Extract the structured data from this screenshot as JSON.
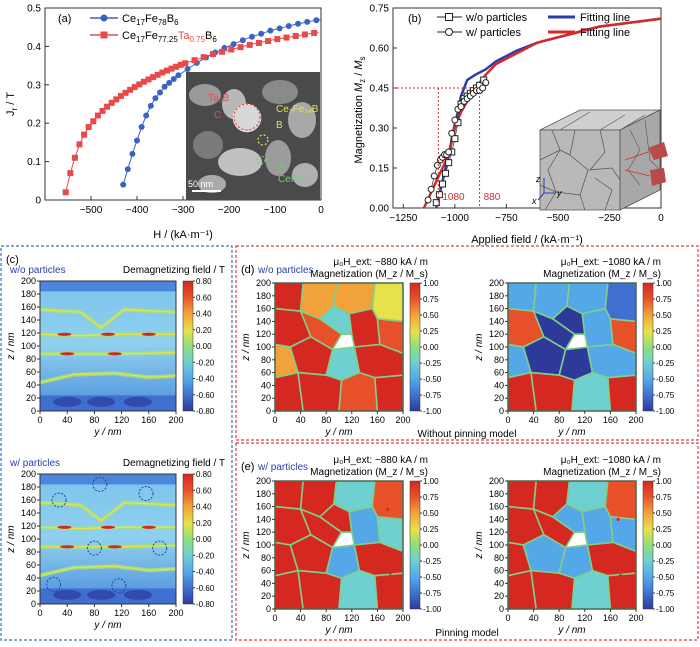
{
  "colors": {
    "blue_series": "#3b63c6",
    "red_series": "#e84a4a",
    "fit_blue": "#2a3ea8",
    "fit_red": "#d42a2a",
    "panel_c_border": "#3a6fc0",
    "panel_de_border": "#d94040",
    "cmap": [
      "#2e3a9a",
      "#3f6fd0",
      "#55a8e8",
      "#6fd0d0",
      "#8ee07a",
      "#e6e24a",
      "#f2a23a",
      "#e8502a",
      "#d42820"
    ]
  },
  "panel_a": {
    "label": "(a)",
    "xlabel": "H / (kA·m⁻¹)",
    "ylabel": "J_r / T",
    "legend": [
      {
        "pre": "Ce",
        "sub1": "17",
        "mid": "Fe",
        "sub2": "78",
        "mid2": "B",
        "sub3": "6"
      },
      {
        "pre": "Ce",
        "sub1": "17",
        "mid": "Fe",
        "sub2": "77.25",
        "ta": "Ta",
        "sub4": "0.75",
        "mid2": "B",
        "sub3": "6"
      }
    ],
    "inset": {
      "scale": "50 nm",
      "labels": {
        "ta2b": "Ta₂B",
        "c": "C",
        "b": "B",
        "a": "A",
        "ce2fe14b": "Ce₂Fe₁₄B",
        "cefe2": "CeFe₂"
      }
    }
  },
  "panel_b": {
    "label": "(b)",
    "xlabel": "Applied field / (kA·m⁻¹)",
    "ylabel": "Magnetization M_z / M_s",
    "legend": [
      "w/o particles",
      "w/ particles",
      "Fitting line",
      "Fitting line"
    ],
    "marker_1080": "1080",
    "marker_880": "880",
    "axis_labels": {
      "z": "z",
      "y": "y",
      "x": "x"
    }
  },
  "panel_c": {
    "label": "(c)",
    "top_title": "w/o particles",
    "bottom_title": "w/ particles",
    "cbar_title": "Demagnetizing field / T",
    "cbar_ticks": [
      "0.80",
      "0.60",
      "0.40",
      "0.20",
      "0.00",
      "-0.20",
      "-0.40",
      "-0.60",
      "-0.80"
    ],
    "xlabel": "y / nm",
    "ylabel": "z / nm",
    "xticks": [
      "0",
      "40",
      "80",
      "120",
      "160",
      "200"
    ],
    "yticks": [
      "200",
      "180",
      "160",
      "140",
      "120",
      "100",
      "80",
      "60",
      "40",
      "20",
      "0"
    ]
  },
  "panel_d": {
    "label": "(d)",
    "tag": "w/o particles",
    "field_left": "μ₀H_ext: −880 kA / m",
    "field_right": "μ₀H_ext: −1080 kA / m",
    "mag_title": "Magnetization (M_z / M_s)",
    "cbar_ticks": [
      "1.00",
      "0.75",
      "0.50",
      "0.25",
      "0.00",
      "-0.25",
      "-0.50",
      "-0.75",
      "-1.00"
    ],
    "xlabel": "y / nm",
    "ylabel": "z / nm",
    "caption": "Without pinning model",
    "xticks": [
      "0",
      "40",
      "80",
      "120",
      "160",
      "200"
    ],
    "yticks": [
      "200",
      "180",
      "160",
      "140",
      "120",
      "100",
      "80",
      "60",
      "40",
      "20",
      "0"
    ]
  },
  "panel_e": {
    "label": "(e)",
    "tag": "w/ particles",
    "field_left": "μ₀H_ext: −880 kA / m",
    "field_right": "μ₀H_ext: −1080 kA / m",
    "mag_title": "Magnetization (M_z / M_s)",
    "cbar_ticks": [
      "1.00",
      "0.75",
      "0.50",
      "0.25",
      "0.00",
      "-0.25",
      "-0.50",
      "-0.75",
      "-1.00"
    ],
    "xlabel": "y / nm",
    "ylabel": "z / nm",
    "caption": "Pinning model",
    "xticks": [
      "0",
      "40",
      "80",
      "120",
      "160",
      "200"
    ],
    "yticks": [
      "200",
      "180",
      "160",
      "140",
      "120",
      "100",
      "80",
      "60",
      "40",
      "20",
      "0"
    ]
  },
  "chart_data": [
    {
      "type": "line",
      "panel": "a",
      "xlabel": "H / (kA·m⁻¹)",
      "ylabel": "J_r / T",
      "xlim": [
        -600,
        0
      ],
      "ylim": [
        0,
        0.5
      ],
      "xticks": [
        -500,
        -400,
        -300,
        -200,
        -100,
        0
      ],
      "yticks": [
        0,
        0.1,
        0.2,
        0.3,
        0.4,
        0.5
      ],
      "series": [
        {
          "name": "Ce17Fe78B6",
          "color": "#3b63c6",
          "marker": "circle",
          "x": [
            -430,
            -420,
            -410,
            -400,
            -390,
            -380,
            -370,
            -360,
            -350,
            -340,
            -330,
            -320,
            -310,
            -300,
            -290,
            -280,
            -270,
            -260,
            -250,
            -240,
            -230,
            -220,
            -210,
            -200,
            -190,
            -180,
            -170,
            -160,
            -150,
            -140,
            -130,
            -120,
            -110,
            -100,
            -90,
            -80,
            -70,
            -60,
            -50,
            -40,
            -30,
            -20,
            -10,
            0
          ],
          "y": [
            0.04,
            0.08,
            0.12,
            0.155,
            0.19,
            0.22,
            0.245,
            0.265,
            0.28,
            0.295,
            0.305,
            0.315,
            0.325,
            0.333,
            0.341,
            0.349,
            0.357,
            0.364,
            0.371,
            0.378,
            0.384,
            0.39,
            0.396,
            0.401,
            0.406,
            0.411,
            0.416,
            0.421,
            0.425,
            0.429,
            0.433,
            0.437,
            0.441,
            0.444,
            0.447,
            0.45,
            0.453,
            0.456,
            0.459,
            0.461,
            0.464,
            0.466,
            0.468,
            0.47
          ]
        },
        {
          "name": "Ce17Fe77.25Ta0.75B6",
          "color": "#e84a4a",
          "marker": "square",
          "x": [
            -555,
            -545,
            -535,
            -525,
            -515,
            -505,
            -495,
            -485,
            -475,
            -465,
            -455,
            -445,
            -435,
            -425,
            -415,
            -405,
            -395,
            -385,
            -375,
            -365,
            -355,
            -345,
            -335,
            -325,
            -315,
            -305,
            -295,
            -285,
            -275,
            -265,
            -255,
            -245,
            -235,
            -225,
            -215,
            -205,
            -195,
            -185,
            -175,
            -165,
            -155,
            -145,
            -135,
            -125,
            -115,
            -105,
            -95,
            -85,
            -75,
            -65,
            -55,
            -45,
            -35,
            -25,
            -15,
            -5
          ],
          "y": [
            0.02,
            0.07,
            0.11,
            0.145,
            0.17,
            0.19,
            0.205,
            0.22,
            0.232,
            0.243,
            0.253,
            0.262,
            0.271,
            0.279,
            0.287,
            0.294,
            0.301,
            0.308,
            0.314,
            0.32,
            0.326,
            0.332,
            0.337,
            0.342,
            0.347,
            0.352,
            0.356,
            0.36,
            0.364,
            0.368,
            0.372,
            0.376,
            0.38,
            0.383,
            0.386,
            0.389,
            0.392,
            0.395,
            0.398,
            0.401,
            0.404,
            0.407,
            0.409,
            0.412,
            0.414,
            0.417,
            0.419,
            0.421,
            0.423,
            0.425,
            0.427,
            0.429,
            0.431,
            0.433,
            0.435,
            0.437
          ]
        }
      ]
    },
    {
      "type": "line",
      "panel": "b",
      "xlabel": "Applied field / (kA·m⁻¹)",
      "ylabel": "Magnetization M_z / M_s",
      "xlim": [
        -1200,
        0
      ],
      "ylim": [
        0,
        0.75
      ],
      "xticks": [
        -1250,
        -1000,
        -750,
        -500,
        -250,
        0
      ],
      "yticks": [
        0,
        0.15,
        0.3,
        0.45,
        0.6,
        0.75
      ],
      "annotations": [
        {
          "x": -1080,
          "text": "1080"
        },
        {
          "x": -880,
          "text": "880"
        }
      ],
      "series": [
        {
          "name": "w/o particles",
          "color": "#222222",
          "marker": "square",
          "x": [
            -1090,
            -1075,
            -1060,
            -1045,
            -1030,
            -1015,
            -1000,
            -985,
            -970,
            -955,
            -940,
            -925,
            -910,
            -895,
            -880,
            -860
          ],
          "y": [
            0.02,
            0.05,
            0.09,
            0.13,
            0.17,
            0.21,
            0.26,
            0.32,
            0.39,
            0.41,
            0.42,
            0.43,
            0.44,
            0.45,
            0.46,
            0.48
          ]
        },
        {
          "name": "w/ particles",
          "color": "#222222",
          "marker": "circle",
          "x": [
            -1130,
            -1115,
            -1100,
            -1085,
            -1070,
            -1060,
            -1050,
            -1040,
            -1030,
            -1015,
            -1000,
            -985,
            -970,
            -955,
            -940,
            -925,
            -910,
            -895,
            -880,
            -865,
            -850
          ],
          "y": [
            0.03,
            0.07,
            0.12,
            0.16,
            0.18,
            0.19,
            0.2,
            0.2,
            0.21,
            0.28,
            0.33,
            0.37,
            0.38,
            0.4,
            0.41,
            0.42,
            0.43,
            0.44,
            0.44,
            0.45,
            0.47
          ]
        },
        {
          "name": "Fitting line",
          "color": "#2a3ea8",
          "marker": "none",
          "x": [
            -1090,
            -1060,
            -1030,
            -1000,
            -970,
            -940,
            -900,
            -850,
            -800,
            -750,
            -700,
            -600,
            -500,
            -400,
            -300,
            -200,
            -100,
            0
          ],
          "y": [
            0.0,
            0.1,
            0.2,
            0.3,
            0.42,
            0.48,
            0.5,
            0.52,
            0.55,
            0.57,
            0.59,
            0.62,
            0.64,
            0.66,
            0.68,
            0.69,
            0.7,
            0.71
          ]
        },
        {
          "name": "Fitting line",
          "color": "#d42a2a",
          "marker": "none",
          "x": [
            -1150,
            -1120,
            -1090,
            -1060,
            -1030,
            -1000,
            -970,
            -940,
            -900,
            -850,
            -800,
            -750,
            -700,
            -600,
            -500,
            -400,
            -300,
            -200,
            -100,
            0
          ],
          "y": [
            0.0,
            0.05,
            0.1,
            0.15,
            0.2,
            0.3,
            0.36,
            0.4,
            0.45,
            0.5,
            0.54,
            0.56,
            0.58,
            0.62,
            0.64,
            0.66,
            0.68,
            0.69,
            0.7,
            0.71
          ]
        }
      ]
    },
    {
      "type": "heatmap",
      "panel": "c-top",
      "title": "w/o particles",
      "colorbar": "Demagnetizing field / T",
      "xlim": [
        0,
        200
      ],
      "ylim": [
        0,
        200
      ],
      "crange": [
        -0.8,
        0.8
      ]
    },
    {
      "type": "heatmap",
      "panel": "c-bottom",
      "title": "w/ particles",
      "colorbar": "Demagnetizing field / T",
      "xlim": [
        0,
        200
      ],
      "ylim": [
        0,
        200
      ],
      "crange": [
        -0.8,
        0.8
      ]
    },
    {
      "type": "heatmap",
      "panel": "d",
      "title": "w/o particles",
      "caption": "Without pinning model",
      "colorbar": "Magnetization (M_z / M_s)",
      "xlim": [
        0,
        200
      ],
      "ylim": [
        0,
        200
      ],
      "crange": [
        -1,
        1
      ],
      "fields": [
        "μ₀H_ext: −880 kA / m",
        "μ₀H_ext: −1080 kA / m"
      ]
    },
    {
      "type": "heatmap",
      "panel": "e",
      "title": "w/ particles",
      "caption": "Pinning model",
      "colorbar": "Magnetization (M_z / M_s)",
      "xlim": [
        0,
        200
      ],
      "ylim": [
        0,
        200
      ],
      "crange": [
        -1,
        1
      ],
      "fields": [
        "μ₀H_ext: −880 kA / m",
        "μ₀H_ext: −1080 kA / m"
      ]
    }
  ]
}
